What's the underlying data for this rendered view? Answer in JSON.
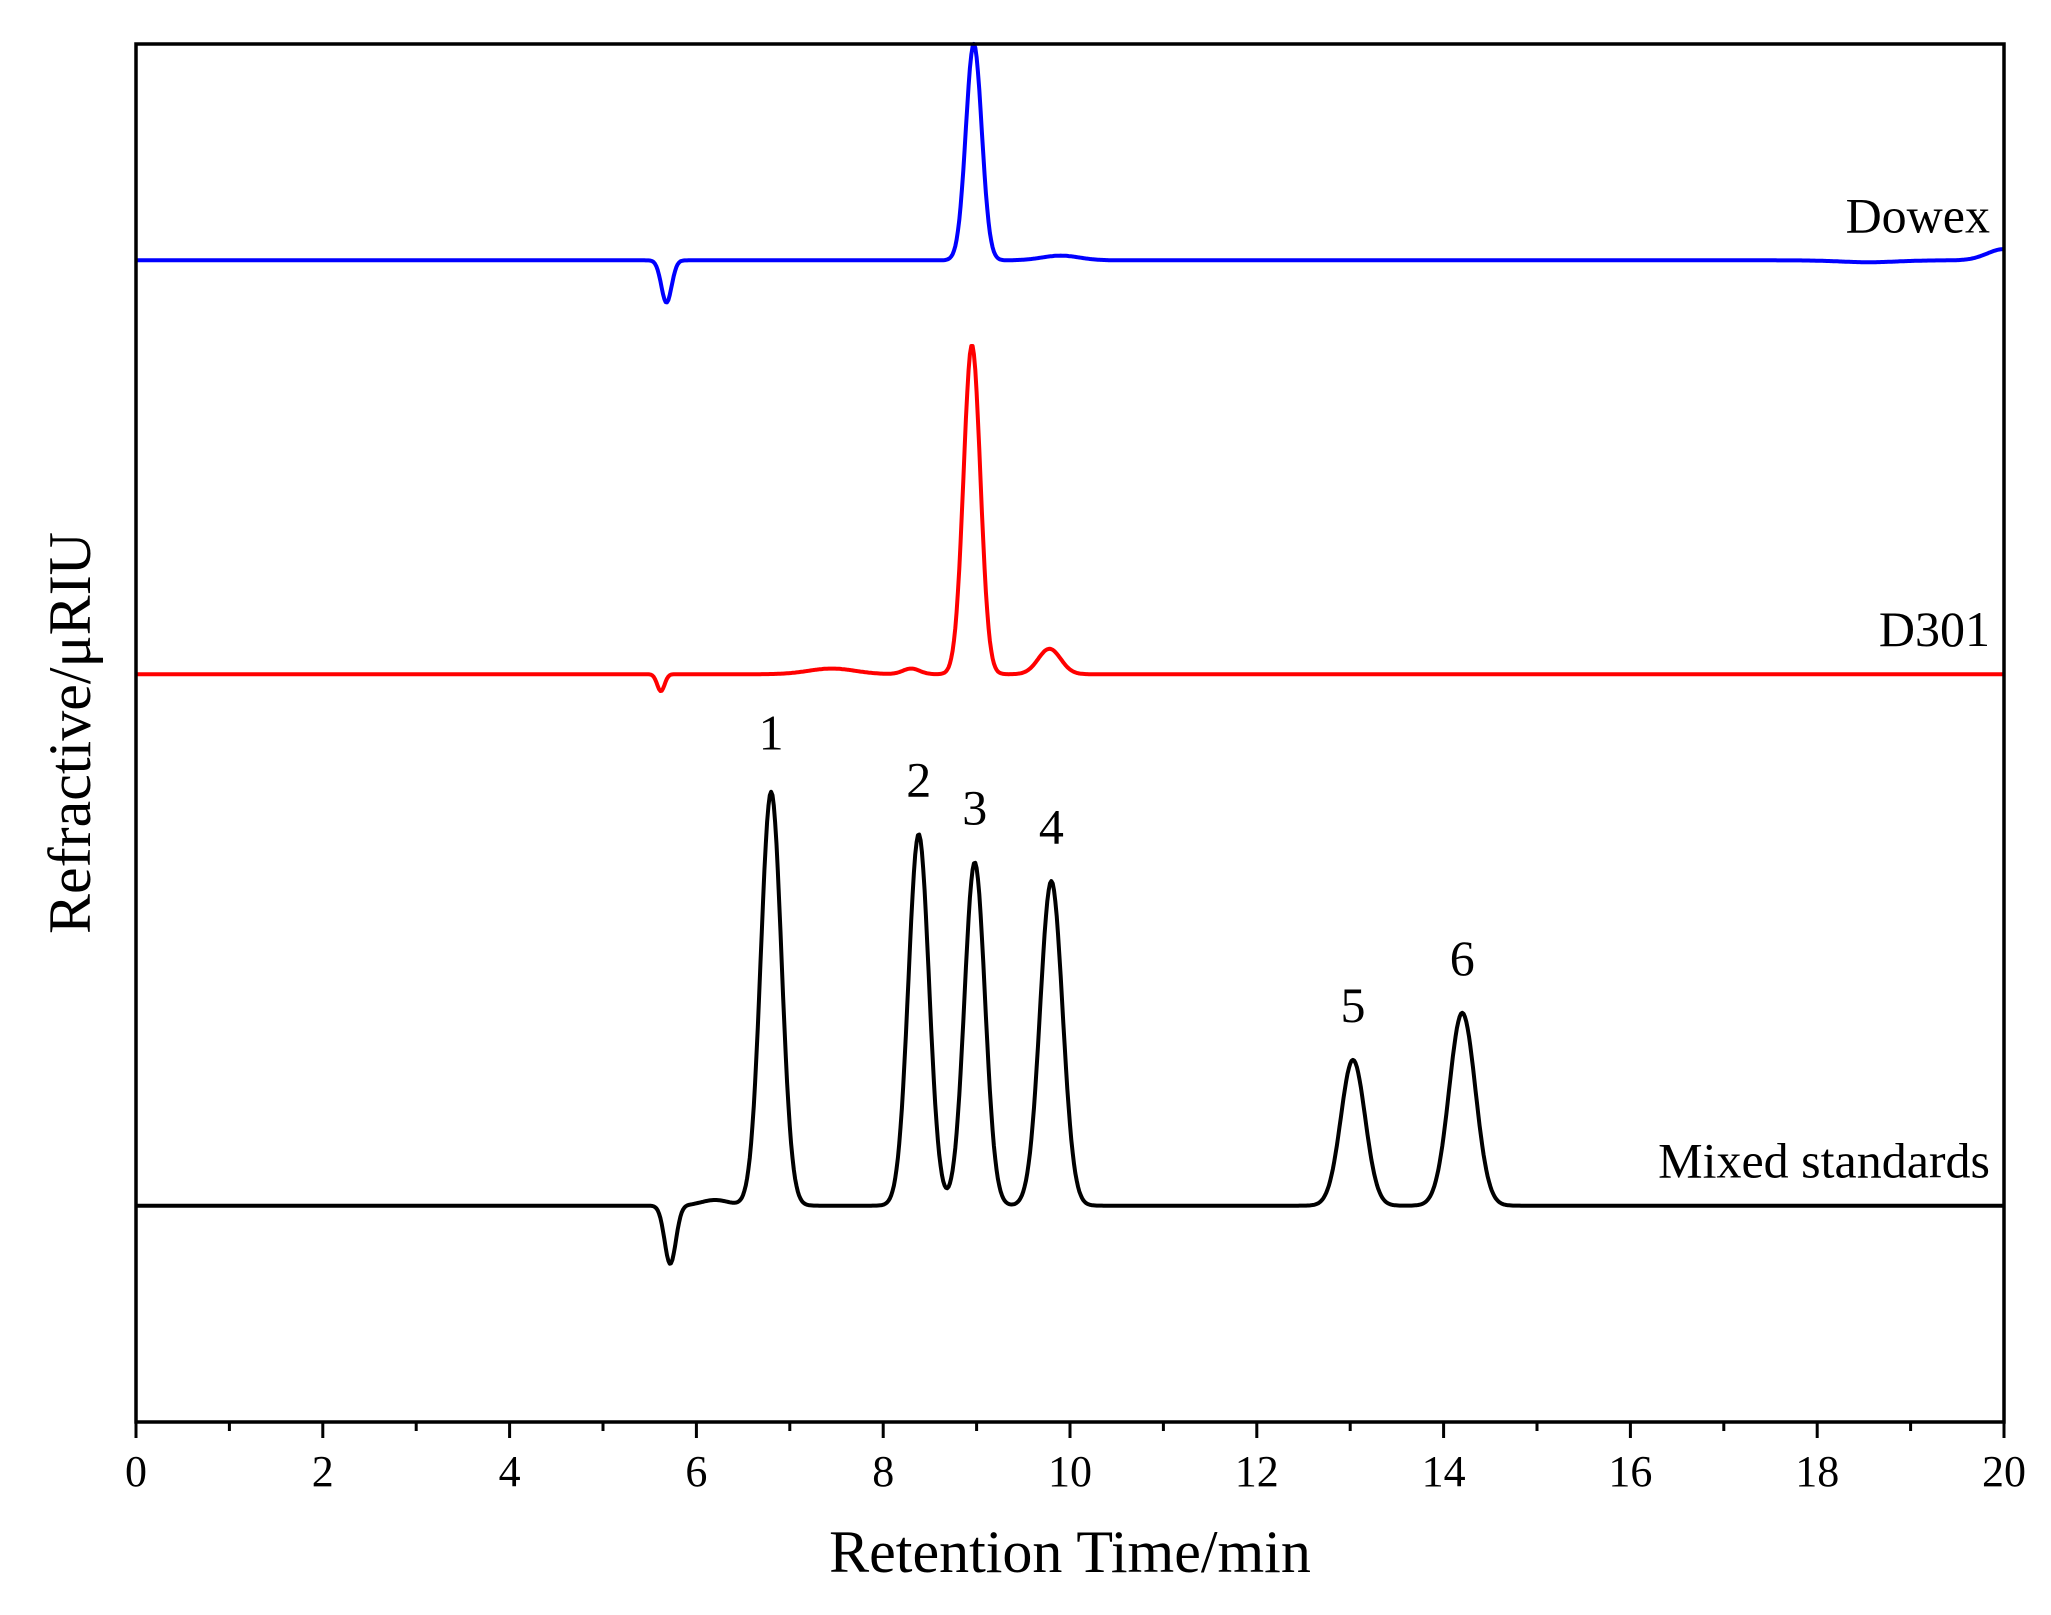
{
  "chart_data": {
    "type": "line",
    "title": "",
    "xlabel": "Retention Time/min",
    "ylabel": "Refractive/μRIU",
    "xlim": [
      0,
      20
    ],
    "ylim": [
      -1.35,
      13.3
    ],
    "x_ticks": [
      "0",
      "2",
      "4",
      "6",
      "8",
      "10",
      "12",
      "14",
      "16",
      "18",
      "20"
    ],
    "x_tick_values": [
      0,
      2,
      4,
      6,
      8,
      10,
      12,
      14,
      16,
      18,
      20
    ],
    "x_minor_step": 1,
    "y_ticks_shown": false,
    "grid": false,
    "legend": "none (series labeled inline at right)",
    "series": [
      {
        "name": "Dowex",
        "color": "#0000ff",
        "baseline": 11.0,
        "slope": 0.0,
        "peaks": [
          {
            "center": 5.68,
            "height": -0.45,
            "sigma": 0.055
          },
          {
            "center": 8.97,
            "height": 2.3,
            "sigma": 0.085
          },
          {
            "center": 9.9,
            "height": 0.05,
            "sigma": 0.2
          },
          {
            "center": 18.55,
            "height": -0.02,
            "sigma": 0.3
          },
          {
            "center": 20.0,
            "height": 0.12,
            "sigma": 0.18
          }
        ]
      },
      {
        "name": "D301",
        "color": "#ff0000",
        "baseline": 6.6,
        "slope": 0.0,
        "peaks": [
          {
            "center": 5.62,
            "height": -0.18,
            "sigma": 0.04
          },
          {
            "center": 7.45,
            "height": 0.06,
            "sigma": 0.25
          },
          {
            "center": 8.3,
            "height": 0.06,
            "sigma": 0.09
          },
          {
            "center": 8.95,
            "height": 3.5,
            "sigma": 0.09
          },
          {
            "center": 9.78,
            "height": 0.27,
            "sigma": 0.12
          }
        ]
      },
      {
        "name": "Mixed standards",
        "color": "#000000",
        "baseline": 0.95,
        "slope": 0.0,
        "peaks": [
          {
            "center": 5.72,
            "height": -0.62,
            "sigma": 0.06
          },
          {
            "center": 6.2,
            "height": 0.06,
            "sigma": 0.15
          },
          {
            "center": 6.8,
            "height": 4.4,
            "sigma": 0.11
          },
          {
            "center": 8.38,
            "height": 3.95,
            "sigma": 0.11
          },
          {
            "center": 8.98,
            "height": 3.65,
            "sigma": 0.11
          },
          {
            "center": 9.8,
            "height": 3.45,
            "sigma": 0.12
          },
          {
            "center": 13.03,
            "height": 1.55,
            "sigma": 0.13
          },
          {
            "center": 14.2,
            "height": 2.05,
            "sigma": 0.14
          }
        ]
      }
    ],
    "peak_labels": [
      {
        "text": "1",
        "x": 6.8,
        "y": 5.8
      },
      {
        "text": "2",
        "x": 8.38,
        "y": 5.3
      },
      {
        "text": "3",
        "x": 8.98,
        "y": 5.0
      },
      {
        "text": "4",
        "x": 9.8,
        "y": 4.8
      },
      {
        "text": "5",
        "x": 13.03,
        "y": 2.9
      },
      {
        "text": "6",
        "x": 14.2,
        "y": 3.4
      }
    ]
  }
}
